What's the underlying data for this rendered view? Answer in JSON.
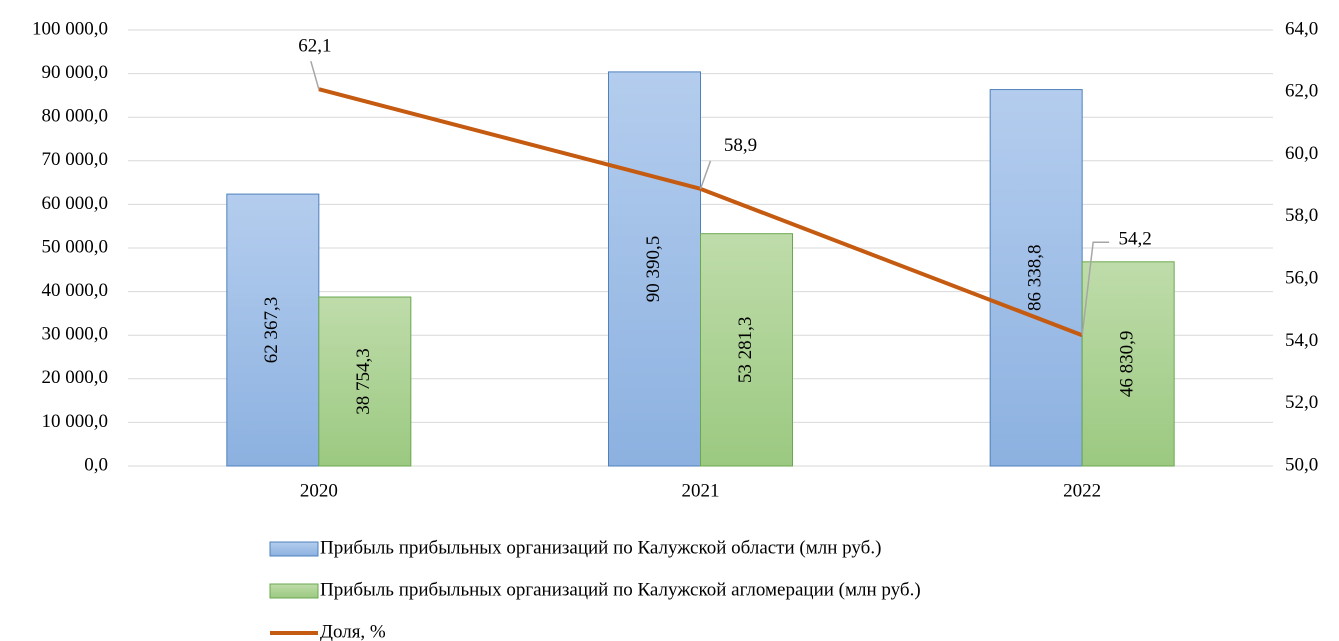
{
  "chart_data": {
    "type": "bar_line",
    "categories": [
      "2020",
      "2021",
      "2022"
    ],
    "series": [
      {
        "name": "Прибыль прибыльных организаций по Калужской области (млн руб.)",
        "color": "#9dbde6",
        "type": "bar",
        "values": [
          62367.3,
          90390.5,
          86338.8
        ],
        "value_labels": [
          "62 367,3",
          "90 390,5",
          "86 338,8"
        ]
      },
      {
        "name": "Прибыль прибыльных организаций по Калужской агломерации (млн руб.)",
        "color": "#acd296",
        "type": "bar",
        "values": [
          38754.3,
          53281.3,
          46830.9
        ],
        "value_labels": [
          "38 754,3",
          "53 281,3",
          "46 830,9"
        ]
      },
      {
        "name": "Доля, %",
        "color": "#c55a11",
        "type": "line",
        "axis": "y2",
        "values": [
          62.1,
          58.9,
          54.2
        ],
        "value_labels": [
          "62,1",
          "58,9",
          "54,2"
        ]
      }
    ],
    "ylim": [
      0,
      100000
    ],
    "yticks": [
      {
        "value": 0,
        "label": "0,0"
      },
      {
        "value": 10000,
        "label": "10 000,0"
      },
      {
        "value": 20000,
        "label": "20 000,0"
      },
      {
        "value": 30000,
        "label": "30 000,0"
      },
      {
        "value": 40000,
        "label": "40 000,0"
      },
      {
        "value": 50000,
        "label": "50 000,0"
      },
      {
        "value": 60000,
        "label": "60 000,0"
      },
      {
        "value": 70000,
        "label": "70 000,0"
      },
      {
        "value": 80000,
        "label": "80 000,0"
      },
      {
        "value": 90000,
        "label": "90 000,0"
      },
      {
        "value": 100000,
        "label": "100 000,0"
      }
    ],
    "y2lim": [
      50,
      64
    ],
    "y2ticks": [
      {
        "value": 50,
        "label": "50,0"
      },
      {
        "value": 52,
        "label": "52,0"
      },
      {
        "value": 54,
        "label": "54,0"
      },
      {
        "value": 56,
        "label": "56,0"
      },
      {
        "value": 58,
        "label": "58,0"
      },
      {
        "value": 60,
        "label": "60,0"
      },
      {
        "value": 62,
        "label": "62,0"
      },
      {
        "value": 64,
        "label": "64,0"
      }
    ],
    "grid": true,
    "legend": "bottom"
  }
}
